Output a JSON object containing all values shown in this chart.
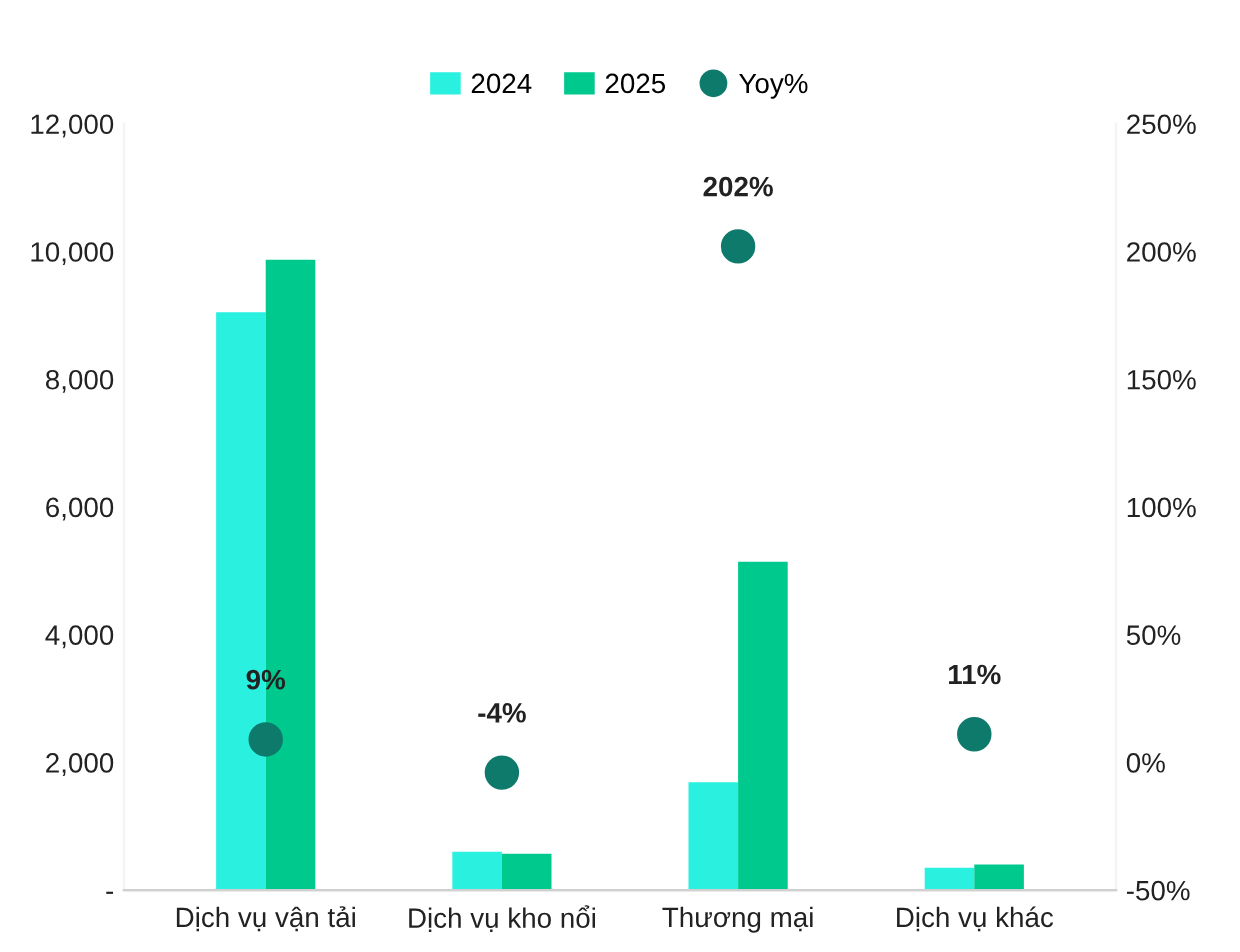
{
  "chart_data": {
    "type": "bar",
    "categories": [
      "Dịch vụ vận tải",
      "Dịch vụ kho nổi",
      "Thương mại",
      "Dịch vụ khác"
    ],
    "series": [
      {
        "name": "2024",
        "color": "#2af0e0",
        "values": [
          9050,
          600,
          1690,
          350
        ]
      },
      {
        "name": "2025",
        "color": "#00c98d",
        "values": [
          9870,
          570,
          5140,
          400
        ]
      },
      {
        "name": "Yoy%",
        "type": "scatter",
        "axis": "y2",
        "color": "#0e7a6c",
        "values": [
          9,
          -4,
          202,
          11
        ],
        "value_labels": [
          "9%",
          "-4%",
          "202%",
          "11%"
        ]
      }
    ],
    "ylim": [
      0,
      12000
    ],
    "yticks": [
      {
        "value": 0,
        "label": "-"
      },
      {
        "value": 2000,
        "label": "2,000"
      },
      {
        "value": 4000,
        "label": "4,000"
      },
      {
        "value": 6000,
        "label": "6,000"
      },
      {
        "value": 8000,
        "label": "8,000"
      },
      {
        "value": 10000,
        "label": "10,000"
      },
      {
        "value": 12000,
        "label": "12,000"
      }
    ],
    "y2lim": [
      -50,
      250
    ],
    "y2ticks": [
      {
        "value": -50,
        "label": "-50%"
      },
      {
        "value": 0,
        "label": "0%"
      },
      {
        "value": 50,
        "label": "50%"
      },
      {
        "value": 100,
        "label": "100%"
      },
      {
        "value": 150,
        "label": "150%"
      },
      {
        "value": 200,
        "label": "200%"
      },
      {
        "value": 250,
        "label": "250%"
      }
    ],
    "marker": "circle",
    "legend": "top",
    "grid": false
  }
}
